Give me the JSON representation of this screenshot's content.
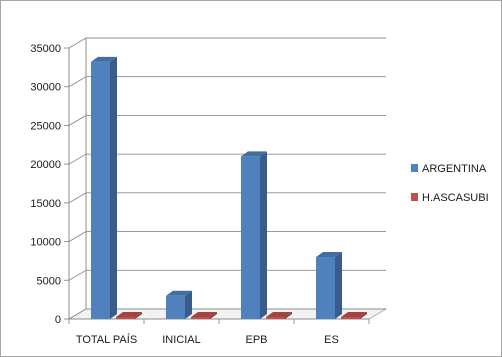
{
  "chart_data": {
    "type": "bar",
    "subtype": "3d-clustered-column",
    "categories": [
      "TOTAL PAÍS",
      "INICIAL",
      "EPB",
      "ES"
    ],
    "series": [
      {
        "name": "ARGENTINA",
        "values": [
          33200,
          3000,
          21000,
          8000
        ],
        "color": "#4f81bd"
      },
      {
        "name": "H.ASCASUBI",
        "values": [
          0,
          0,
          0,
          0
        ],
        "color": "#c0504d"
      }
    ],
    "ylim": [
      0,
      35000
    ],
    "yticks": [
      0,
      5000,
      10000,
      15000,
      20000,
      25000,
      30000,
      35000
    ],
    "grid": true,
    "legend_position": "right"
  }
}
